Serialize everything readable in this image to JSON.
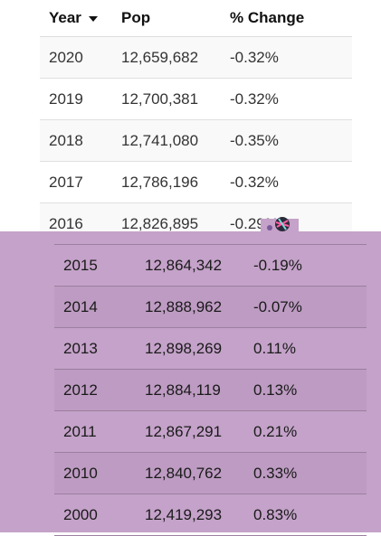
{
  "table": {
    "headers": {
      "year": "Year",
      "pop": "Pop",
      "change": "% Change"
    },
    "rows_top": [
      {
        "year": "2020",
        "pop": "12,659,682",
        "change": "-0.32%"
      },
      {
        "year": "2019",
        "pop": "12,700,381",
        "change": "-0.32%"
      },
      {
        "year": "2018",
        "pop": "12,741,080",
        "change": "-0.35%"
      },
      {
        "year": "2017",
        "pop": "12,786,196",
        "change": "-0.32%"
      },
      {
        "year": "2016",
        "pop": "12,826,895",
        "change": "-0.29%"
      }
    ],
    "rows_bottom": [
      {
        "year": "2015",
        "pop": "12,864,342",
        "change": "-0.19%"
      },
      {
        "year": "2014",
        "pop": "12,888,962",
        "change": "-0.07%"
      },
      {
        "year": "2013",
        "pop": "12,898,269",
        "change": "0.11%"
      },
      {
        "year": "2012",
        "pop": "12,884,119",
        "change": "0.13%"
      },
      {
        "year": "2011",
        "pop": "12,867,291",
        "change": "0.21%"
      },
      {
        "year": "2010",
        "pop": "12,840,762",
        "change": "0.33%"
      },
      {
        "year": "2000",
        "pop": "12,419,293",
        "change": "0.83%"
      }
    ]
  },
  "colors": {
    "overlay": "#c4a2c9",
    "row_alt": "#f9f9f9"
  },
  "icons": {
    "sort": "sort-descending-icon"
  }
}
